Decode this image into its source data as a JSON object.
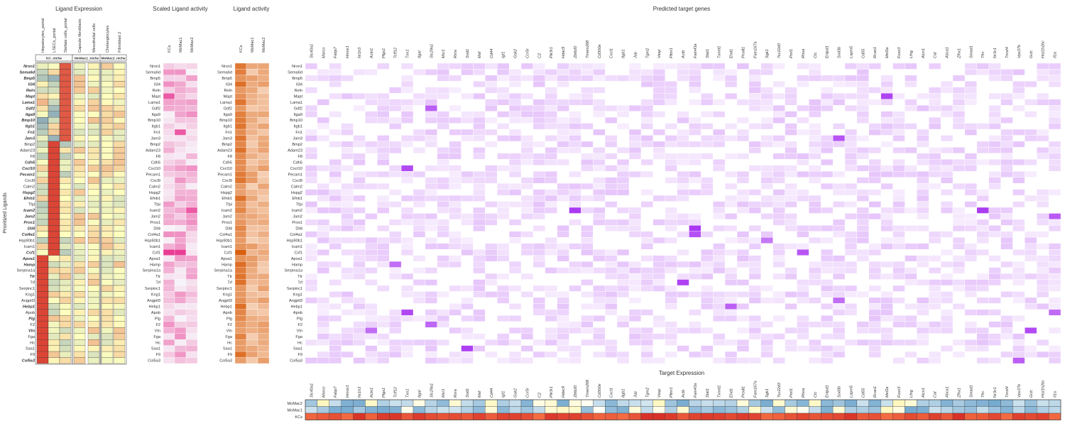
{
  "chart_data": {
    "type": "heatmap",
    "y_label": "Prioritized Ligands",
    "ligands": [
      "Nrxn1",
      "Sema6d",
      "Bmp5",
      "Il34",
      "Reln",
      "Mapt",
      "Lama1",
      "Gdf2",
      "Itga9",
      "Bmp10",
      "Itgb1",
      "Fn1",
      "Jam3",
      "Bmp2",
      "Adam23",
      "F8",
      "Cdh5",
      "Cxcl10",
      "Pecam1",
      "Cxcl9",
      "Calm2",
      "Hspg2",
      "Efnb1",
      "Tfpi",
      "Icam2",
      "Jam2",
      "Pros1",
      "Dll4",
      "Col4a1",
      "Hsp90b1",
      "Icam1",
      "Csf1",
      "Apoa1",
      "Hamp",
      "Serpina1a",
      "Ttr",
      "Trf",
      "Serpinc1",
      "Kng1",
      "Angptl3",
      "Hebp1",
      "Apob",
      "Plg",
      "F2",
      "Vtn",
      "Fga",
      "Hc",
      "Saa1",
      "F9",
      "Col5a3"
    ],
    "ligand_expression": {
      "title": "Ligand Expression",
      "columns": [
        "Hepatocytes_portal",
        "LSECs_portal",
        "Stellate cells_portal",
        "Capsule fibroblasts",
        "Mesothelial cells",
        "Cholangiocytes",
        "Fibroblast 2"
      ],
      "niches": [
        {
          "label": "KC_niche",
          "columns": 3
        },
        {
          "label": "MoMac1_niche",
          "columns": 2
        },
        {
          "label": "MoMac2_niche",
          "columns": 2
        }
      ],
      "color_low": "#4575b4",
      "color_mid": "#ffffbf",
      "color_high": "#d73027"
    },
    "scaled_ligand_activity": {
      "title": "Scaled Ligand activity",
      "columns": [
        "KCs",
        "MoMac1",
        "MoMac2"
      ],
      "color": "#e7298a"
    },
    "ligand_activity": {
      "title": "Ligand activity",
      "columns": [
        "KCs",
        "MoMac1",
        "MoMac2"
      ],
      "color": "#d95f0e"
    },
    "predicted_target_genes": {
      "title": "Predicted target genes",
      "genes": [
        "Slc40a1",
        "Marco",
        "Fabp7",
        "Hmox1",
        "Nr1h3",
        "Actn1",
        "Ptgs1",
        "Tcff12",
        "Txn1",
        "Itgal",
        "Slc29a1",
        "Msr1",
        "Rxra",
        "Sod1",
        "Maf",
        "Cd44",
        "Igf1",
        "Gsk2",
        "Ccr5r",
        "C2",
        "Pik3r1",
        "Hdac9",
        "Zbtb20",
        "Tmem268",
        "Cd300e",
        "Cxcl1",
        "Itgb1",
        "Jup",
        "Tgm2",
        "Vasp",
        "Pltnr1",
        "Actb",
        "Fam43a",
        "Stat1",
        "Txnrd1",
        "Ehd1",
        "Prodl1",
        "Fam167a",
        "Sgk1",
        "Tsc22d3",
        "Pmf1",
        "Rhoa",
        "Ctc",
        "Entpd1",
        "Sod3b",
        "Lapm5",
        "Cd55",
        "Rcan1",
        "Mef2a",
        "Foxn3",
        "Lfng",
        "Alcn1",
        "Cat",
        "Abca1",
        "Zfhx1",
        "Smad1",
        "Tfrc",
        "Nr3c1",
        "Tnrsf4",
        "Vps37b",
        "Gclc",
        "Hist1h2bc",
        "Il1a"
      ],
      "color": "#a020f0"
    },
    "target_expression": {
      "title": "Target Expression",
      "rows": [
        "MoMac2",
        "MoMac1",
        "KCs"
      ]
    }
  }
}
